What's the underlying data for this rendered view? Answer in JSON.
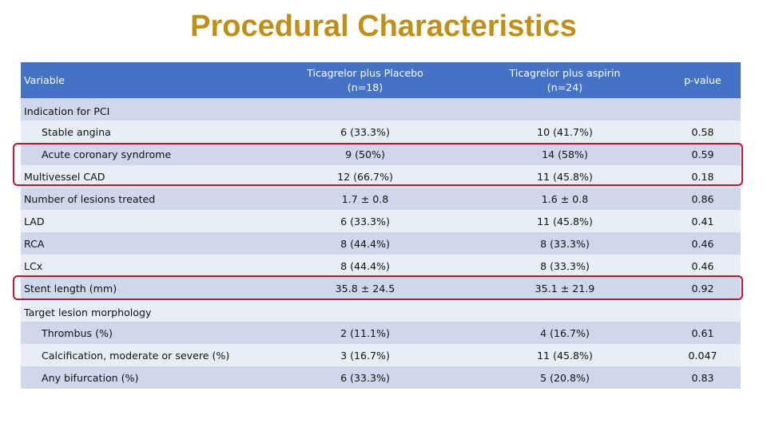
{
  "title": "Procedural Characteristics",
  "table": {
    "headers": [
      {
        "line1": "Variable",
        "line2": ""
      },
      {
        "line1": "Ticagrelor plus Placebo",
        "line2": "(n=18)"
      },
      {
        "line1": "Ticagrelor plus aspirin",
        "line2": "(n=24)"
      },
      {
        "line1": "p-value",
        "line2": ""
      }
    ],
    "rows": [
      {
        "label": "Indication for PCI",
        "col1": "",
        "col2": "",
        "p": ""
      },
      {
        "label": "Stable angina",
        "col1": "6 (33.3%)",
        "col2": "10 (41.7%)",
        "p": "0.58"
      },
      {
        "label": "Acute coronary syndrome",
        "col1": "9 (50%)",
        "col2": "14 (58%)",
        "p": "0.59"
      },
      {
        "label": "Multivessel CAD",
        "col1": "12 (66.7%)",
        "col2": "11 (45.8%)",
        "p": "0.18"
      },
      {
        "label": "Number of lesions treated",
        "col1": "1.7 ± 0.8",
        "col2": "1.6 ± 0.8",
        "p": "0.86"
      },
      {
        "label": "LAD",
        "col1": "6 (33.3%)",
        "col2": "11 (45.8%)",
        "p": "0.41"
      },
      {
        "label": "RCA",
        "col1": "8 (44.4%)",
        "col2": "8 (33.3%)",
        "p": "0.46"
      },
      {
        "label": "LCx",
        "col1": "8 (44.4%)",
        "col2": "8 (33.3%)",
        "p": "0.46"
      },
      {
        "label": "Stent length (mm)",
        "col1": "35.8 ± 24.5",
        "col2": "35.1 ± 21.9",
        "p": "0.92"
      },
      {
        "label": "Target lesion morphology",
        "col1": "",
        "col2": "",
        "p": ""
      },
      {
        "label": "Thrombus (%)",
        "col1": "2 (11.1%)",
        "col2": "4 (16.7%)",
        "p": "0.61"
      },
      {
        "label": "Calcification, moderate or severe (%)",
        "col1": "3 (16.7%)",
        "col2": "11 (45.8%)",
        "p": "0.047"
      },
      {
        "label": "Any bifurcation (%)",
        "col1": "6 (33.3%)",
        "col2": "5 (20.8%)",
        "p": "0.83"
      }
    ]
  },
  "colors": {
    "title": "#c09016",
    "header_bg": "#4472c4",
    "row_dark": "#cfd7ea",
    "row_light": "#e9edf5",
    "highlight": "#c0162d"
  }
}
